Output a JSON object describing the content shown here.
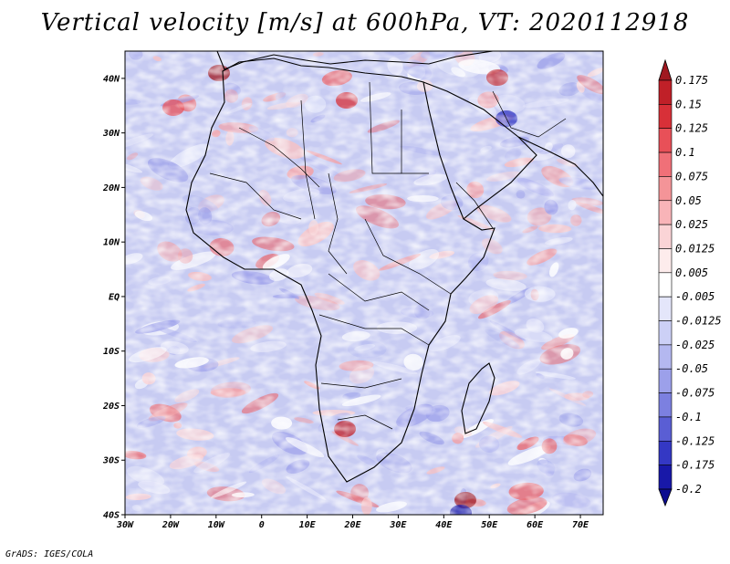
{
  "title": "Vertical velocity [m/s] at 600hPa, VT: 2020112918",
  "footer": "GrADS: IGES/COLA",
  "map": {
    "lat_labels": [
      "40N",
      "30N",
      "20N",
      "10N",
      "EQ",
      "10S",
      "20S",
      "30S",
      "40S"
    ],
    "lon_labels": [
      "30W",
      "20W",
      "10W",
      "0",
      "10E",
      "20E",
      "30E",
      "40E",
      "50E",
      "60E",
      "70E"
    ],
    "lat_range": [
      -40,
      45
    ],
    "lon_range": [
      -30,
      75
    ]
  },
  "colorbar": {
    "levels": [
      "0.175",
      "0.15",
      "0.125",
      "0.1",
      "0.075",
      "0.05",
      "0.025",
      "0.0125",
      "0.005",
      "-0.005",
      "-0.0125",
      "-0.025",
      "-0.05",
      "-0.075",
      "-0.1",
      "-0.125",
      "-0.175",
      "-0.2"
    ],
    "colors": [
      "#a01820",
      "#c02028",
      "#d83038",
      "#e85058",
      "#f07078",
      "#f49498",
      "#f8b4b8",
      "#fad4d6",
      "#fdecec",
      "#ffffff",
      "#e4e6fa",
      "#ccd0f6",
      "#b4b8f0",
      "#9ca0ea",
      "#7c80e0",
      "#5a5ed4",
      "#3438c4",
      "#1818a8",
      "#0c0c90"
    ]
  }
}
